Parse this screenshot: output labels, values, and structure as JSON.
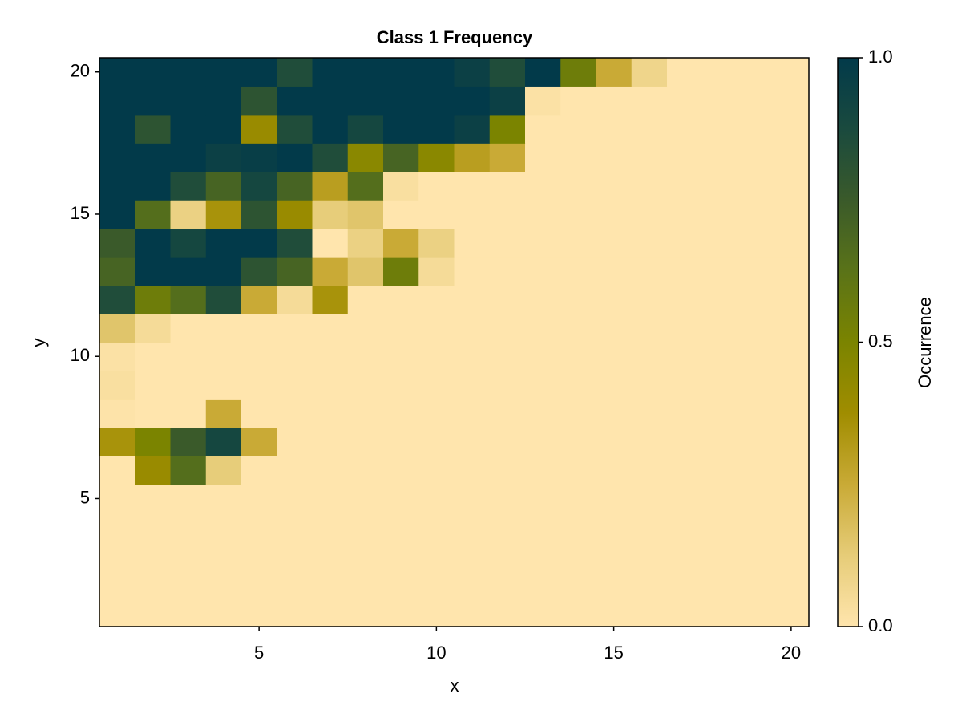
{
  "chart_data": {
    "type": "heatmap",
    "title": "Class 1 Frequency",
    "x_label": "x",
    "y_label": "y",
    "x": [
      1,
      2,
      3,
      4,
      5,
      6,
      7,
      8,
      9,
      10,
      11,
      12,
      13,
      14,
      15,
      16,
      17,
      18,
      19,
      20
    ],
    "y": [
      1,
      2,
      3,
      4,
      5,
      6,
      7,
      8,
      9,
      10,
      11,
      12,
      13,
      14,
      15,
      16,
      17,
      18,
      19,
      20
    ],
    "values": [
      [
        0,
        0,
        0,
        0,
        0,
        0,
        0,
        0,
        0,
        0,
        0,
        0,
        0,
        0,
        0,
        0,
        0,
        0,
        0,
        0
      ],
      [
        0,
        0,
        0,
        0,
        0,
        0,
        0,
        0,
        0,
        0,
        0,
        0,
        0,
        0,
        0,
        0,
        0,
        0,
        0,
        0
      ],
      [
        0,
        0,
        0,
        0,
        0,
        0,
        0,
        0,
        0,
        0,
        0,
        0,
        0,
        0,
        0,
        0,
        0,
        0,
        0,
        0
      ],
      [
        0,
        0,
        0,
        0,
        0,
        0,
        0,
        0,
        0,
        0,
        0,
        0,
        0,
        0,
        0,
        0,
        0,
        0,
        0,
        0
      ],
      [
        0,
        0,
        0,
        0,
        0,
        0,
        0,
        0,
        0,
        0,
        0,
        0,
        0,
        0,
        0,
        0,
        0,
        0,
        0,
        0
      ],
      [
        0,
        0.4,
        0.65,
        0.12,
        0,
        0,
        0,
        0,
        0,
        0,
        0,
        0,
        0,
        0,
        0,
        0,
        0,
        0,
        0,
        0
      ],
      [
        0.35,
        0.5,
        0.75,
        0.9,
        0.25,
        0,
        0,
        0,
        0,
        0,
        0,
        0,
        0,
        0,
        0,
        0,
        0,
        0,
        0,
        0
      ],
      [
        0.01,
        0,
        0,
        0.25,
        0,
        0,
        0,
        0,
        0,
        0,
        0,
        0,
        0,
        0,
        0,
        0,
        0,
        0,
        0,
        0
      ],
      [
        0.03,
        0,
        0,
        0,
        0,
        0,
        0,
        0,
        0,
        0,
        0,
        0,
        0,
        0,
        0,
        0,
        0,
        0,
        0,
        0
      ],
      [
        0.02,
        0,
        0,
        0,
        0,
        0,
        0,
        0,
        0,
        0,
        0,
        0,
        0,
        0,
        0,
        0,
        0,
        0,
        0,
        0
      ],
      [
        0.15,
        0.05,
        0,
        0,
        0,
        0,
        0,
        0,
        0,
        0,
        0,
        0,
        0,
        0,
        0,
        0,
        0,
        0,
        0,
        0
      ],
      [
        0.85,
        0.55,
        0.65,
        0.85,
        0.25,
        0.05,
        0.35,
        0,
        0,
        0,
        0,
        0,
        0,
        0,
        0,
        0,
        0,
        0,
        0,
        0
      ],
      [
        0.7,
        1,
        1,
        1,
        0.8,
        0.7,
        0.25,
        0.15,
        0.55,
        0.05,
        0,
        0,
        0,
        0,
        0,
        0,
        0,
        0,
        0,
        0
      ],
      [
        0.75,
        1,
        0.9,
        1,
        1,
        0.85,
        0,
        0.1,
        0.25,
        0.1,
        0,
        0,
        0,
        0,
        0,
        0,
        0,
        0,
        0,
        0
      ],
      [
        1,
        0.65,
        0.1,
        0.35,
        0.8,
        0.4,
        0.12,
        0.15,
        0,
        0,
        0,
        0,
        0,
        0,
        0,
        0,
        0,
        0,
        0,
        0
      ],
      [
        1,
        1,
        0.85,
        0.7,
        0.9,
        0.7,
        0.3,
        0.65,
        0.03,
        0,
        0,
        0,
        0,
        0,
        0,
        0,
        0,
        0,
        0,
        0
      ],
      [
        1,
        1,
        1,
        0.95,
        0.97,
        1,
        0.85,
        0.45,
        0.7,
        0.45,
        0.3,
        0.25,
        0,
        0,
        0,
        0,
        0,
        0,
        0,
        0
      ],
      [
        1,
        0.8,
        1,
        1,
        0.4,
        0.85,
        1,
        0.9,
        1,
        1,
        0.95,
        0.5,
        0,
        0,
        0,
        0,
        0,
        0,
        0,
        0
      ],
      [
        1,
        1,
        1,
        1,
        0.8,
        1,
        1,
        1,
        1,
        1,
        1,
        0.95,
        0.02,
        0,
        0,
        0,
        0,
        0,
        0,
        0
      ],
      [
        1,
        1,
        1,
        1,
        1,
        0.85,
        1,
        1,
        1,
        1,
        0.95,
        0.85,
        1,
        0.55,
        0.25,
        0.08,
        0,
        0,
        0,
        0
      ]
    ],
    "xlim": [
      0.5,
      20.5
    ],
    "ylim": [
      0.5,
      20.5
    ],
    "xticks": [
      5,
      10,
      15,
      20
    ],
    "yticks": [
      5,
      10,
      15,
      20
    ],
    "colormap": [
      "#ffe5ad",
      "#e6cc78",
      "#c9aa36",
      "#a08d00",
      "#7b8400",
      "#5a7318",
      "#3a5a2a",
      "#1a4a3e",
      "#023a4a"
    ],
    "colorbar": {
      "label": "Occurrence",
      "lim": [
        0,
        1
      ],
      "ticks": [
        {
          "value": 0,
          "label": "0.0"
        },
        {
          "value": 0.5,
          "label": "0.5"
        },
        {
          "value": 1,
          "label": "1.0"
        }
      ]
    }
  }
}
